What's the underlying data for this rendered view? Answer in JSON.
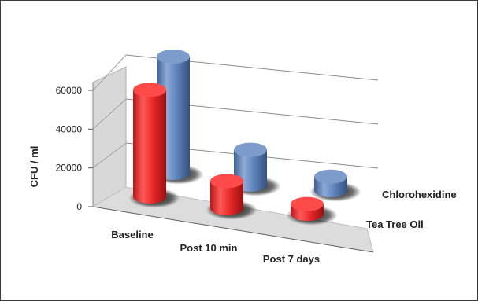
{
  "chart_data": {
    "type": "bar",
    "subtype": "3d-cylinder",
    "ylabel": "CFU / ml",
    "xlabel": "",
    "ylim": [
      0,
      60000
    ],
    "yticks": [
      0,
      20000,
      40000,
      60000
    ],
    "ytick_labels": [
      "0",
      "20000",
      "40000",
      "60000"
    ],
    "grid": true,
    "categories": [
      "Baseline",
      "Post 10 min",
      "Post 7 days"
    ],
    "series": [
      {
        "name": "Tea Tree Oil",
        "color": "#e03030",
        "values": [
          55000,
          14000,
          5000
        ]
      },
      {
        "name": "Chlorohexidine",
        "color": "#5b80b8",
        "values": [
          60000,
          18000,
          7000
        ]
      }
    ]
  }
}
